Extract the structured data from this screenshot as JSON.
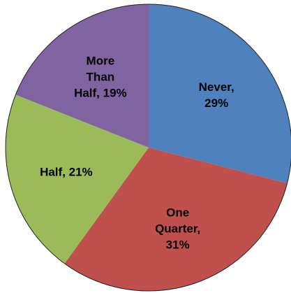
{
  "chart_data": {
    "type": "pie",
    "title": "",
    "start_angle_deg": 0,
    "direction": "clockwise",
    "legend": "none",
    "slices": [
      {
        "label": "Never",
        "value": 29,
        "display": [
          "Never,",
          "29%"
        ],
        "color": "#4F81BD"
      },
      {
        "label": "One Quarter",
        "value": 31,
        "display": [
          "One",
          "Quarter,",
          "31%"
        ],
        "color": "#C0504D"
      },
      {
        "label": "Half",
        "value": 21,
        "display": [
          "Half, 21%"
        ],
        "color": "#9BBB59"
      },
      {
        "label": "More Than Half",
        "value": 19,
        "display": [
          "More",
          "Than",
          "Half, 19%"
        ],
        "color": "#8064A2"
      }
    ]
  }
}
